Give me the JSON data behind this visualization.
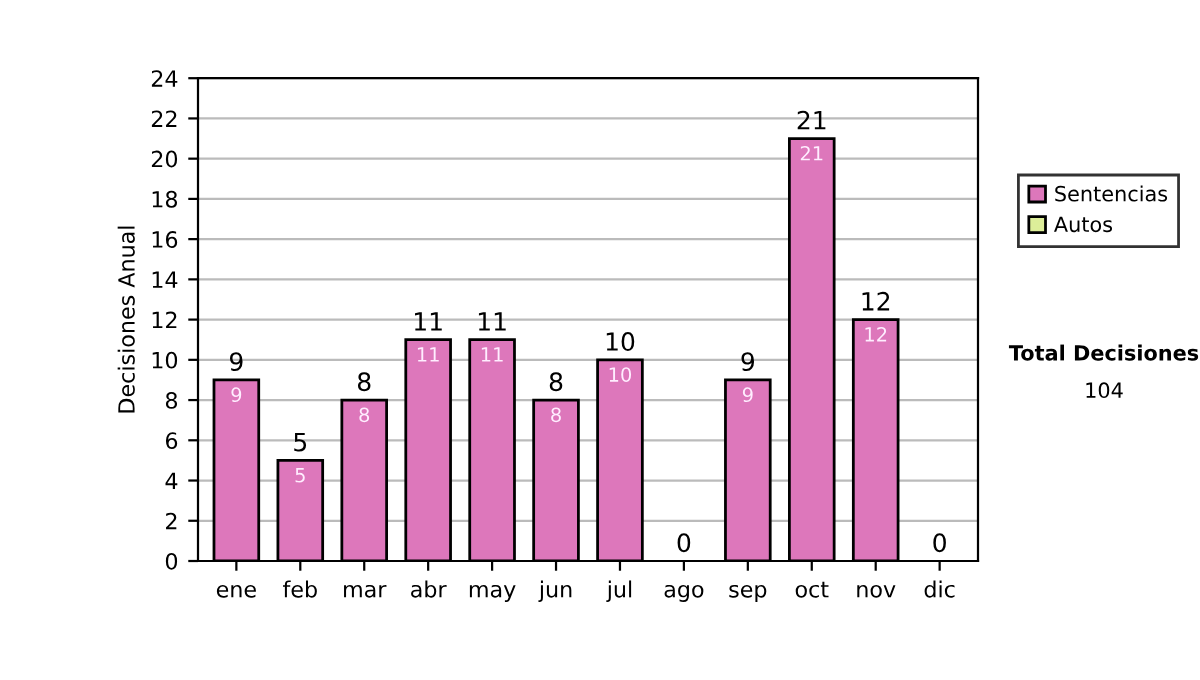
{
  "chart_data": {
    "type": "bar",
    "ylabel": "Decisiones Anual",
    "categories": [
      "ene",
      "feb",
      "mar",
      "abr",
      "may",
      "jun",
      "jul",
      "ago",
      "sep",
      "oct",
      "nov",
      "dic"
    ],
    "stacked": true,
    "series": [
      {
        "name": "Sentencias",
        "color": "#dd77bb",
        "values": [
          9,
          5,
          8,
          11,
          11,
          8,
          10,
          0,
          9,
          21,
          12,
          0
        ],
        "value_labels": [
          "9",
          "5",
          "8",
          "11",
          "11",
          "8",
          "10",
          null,
          "9",
          "21",
          "12",
          null
        ]
      },
      {
        "name": "Autos",
        "color": "#ddee99",
        "values": [
          null,
          null,
          null,
          null,
          null,
          null,
          null,
          null,
          null,
          null,
          null,
          null
        ]
      }
    ],
    "totals": [
      "9",
      "5",
      "8",
      "11",
      "11",
      "8",
      "10",
      "0",
      "9",
      "21",
      "12",
      "0"
    ],
    "ylim": [
      0,
      24
    ],
    "yticks": [
      0,
      2,
      4,
      6,
      8,
      10,
      12,
      14,
      16,
      18,
      20,
      22,
      24
    ],
    "grid": "y",
    "legend": "right",
    "annotations": [
      "Total Decisiones",
      "104"
    ]
  }
}
